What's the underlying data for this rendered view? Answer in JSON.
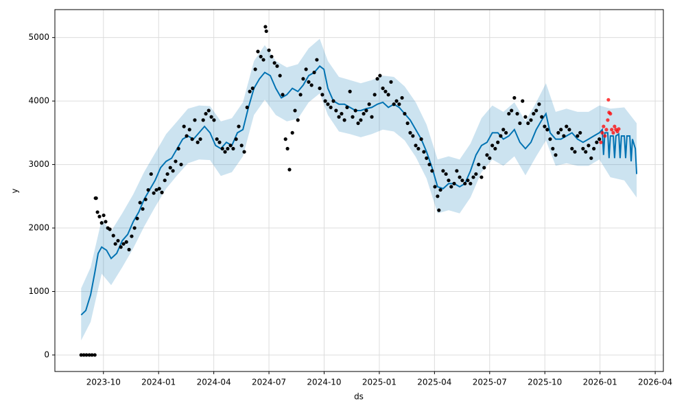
{
  "chart_data": {
    "type": "forecast",
    "x_label": "ds",
    "y_label": "y",
    "xlim": [
      2023.53,
      2026.287
    ],
    "ylim": [
      -260,
      5440
    ],
    "grid": true,
    "xticks": [
      {
        "value": 2023.75,
        "label": "2023-10"
      },
      {
        "value": 2024.0,
        "label": "2024-01"
      },
      {
        "value": 2024.25,
        "label": "2024-04"
      },
      {
        "value": 2024.5,
        "label": "2024-07"
      },
      {
        "value": 2024.75,
        "label": "2024-10"
      },
      {
        "value": 2025.0,
        "label": "2025-01"
      },
      {
        "value": 2025.25,
        "label": "2025-04"
      },
      {
        "value": 2025.5,
        "label": "2025-07"
      },
      {
        "value": 2025.75,
        "label": "2025-10"
      },
      {
        "value": 2026.0,
        "label": "2026-01"
      },
      {
        "value": 2026.25,
        "label": "2026-04"
      }
    ],
    "yticks": [
      0,
      1000,
      2000,
      3000,
      4000,
      5000
    ],
    "band": {
      "color": "#0072b2",
      "x": [
        2023.649,
        2023.692,
        2023.742,
        2023.785,
        2023.835,
        2023.885,
        2023.934,
        2023.984,
        2024.034,
        2024.084,
        2024.133,
        2024.183,
        2024.233,
        2024.282,
        2024.332,
        2024.382,
        2024.432,
        2024.481,
        2024.531,
        2024.581,
        2024.631,
        2024.68,
        2024.73,
        2024.767,
        2024.817,
        2024.867,
        2024.916,
        2024.966,
        2025.016,
        2025.066,
        2025.115,
        2025.165,
        2025.214,
        2025.264,
        2025.314,
        2025.364,
        2025.413,
        2025.463,
        2025.512,
        2025.562,
        2025.612,
        2025.662,
        2025.711,
        2025.755,
        2025.799,
        2025.848,
        2025.898,
        2025.948,
        2025.997,
        2026.047,
        2026.11,
        2026.166
      ],
      "lower": [
        230,
        520,
        1280,
        1100,
        1380,
        1680,
        2020,
        2330,
        2620,
        2830,
        3020,
        3080,
        3070,
        2820,
        2880,
        3130,
        3780,
        4020,
        3780,
        3680,
        3720,
        3980,
        4120,
        3780,
        3520,
        3480,
        3430,
        3480,
        3550,
        3520,
        3380,
        3120,
        2780,
        2230,
        2280,
        2230,
        2480,
        2880,
        3080,
        2980,
        3130,
        2830,
        3130,
        3380,
        2980,
        3020,
        2980,
        2980,
        3080,
        2800,
        2750,
        2480
      ],
      "upper": [
        1050,
        1380,
        2130,
        1950,
        2230,
        2530,
        2880,
        3180,
        3480,
        3680,
        3880,
        3930,
        3920,
        3680,
        3730,
        3980,
        4630,
        4880,
        4630,
        4530,
        4580,
        4830,
        4980,
        4630,
        4380,
        4330,
        4280,
        4330,
        4400,
        4380,
        4230,
        3980,
        3630,
        3080,
        3130,
        3080,
        3330,
        3730,
        3930,
        3830,
        3980,
        3680,
        3980,
        4280,
        3830,
        3880,
        3830,
        3830,
        3930,
        3880,
        3900,
        3650
      ]
    },
    "line": {
      "color": "#0072b2",
      "x": [
        2023.649,
        2023.67,
        2023.692,
        2023.711,
        2023.726,
        2023.742,
        2023.764,
        2023.785,
        2023.81,
        2023.835,
        2023.86,
        2023.885,
        2023.91,
        2023.934,
        2023.959,
        2023.984,
        2024.009,
        2024.034,
        2024.059,
        2024.084,
        2024.109,
        2024.133,
        2024.158,
        2024.183,
        2024.208,
        2024.233,
        2024.258,
        2024.282,
        2024.307,
        2024.332,
        2024.357,
        2024.382,
        2024.407,
        2024.432,
        2024.457,
        2024.481,
        2024.506,
        2024.531,
        2024.556,
        2024.581,
        2024.606,
        2024.631,
        2024.655,
        2024.68,
        2024.705,
        2024.73,
        2024.749,
        2024.767,
        2024.792,
        2024.817,
        2024.842,
        2024.867,
        2024.892,
        2024.916,
        2024.941,
        2024.966,
        2024.991,
        2025.016,
        2025.041,
        2025.066,
        2025.09,
        2025.115,
        2025.14,
        2025.165,
        2025.19,
        2025.214,
        2025.239,
        2025.264,
        2025.289,
        2025.314,
        2025.339,
        2025.364,
        2025.388,
        2025.413,
        2025.438,
        2025.463,
        2025.488,
        2025.512,
        2025.537,
        2025.562,
        2025.587,
        2025.612,
        2025.637,
        2025.662,
        2025.687,
        2025.711,
        2025.736,
        2025.755,
        2025.774,
        2025.799,
        2025.823,
        2025.848,
        2025.873,
        2025.898,
        2025.923,
        2025.948,
        2025.972,
        2025.997,
        2026.01,
        2026.016,
        2026.022,
        2026.035,
        2026.041,
        2026.047,
        2026.06,
        2026.066,
        2026.072,
        2026.085,
        2026.091,
        2026.097,
        2026.11,
        2026.116,
        2026.122,
        2026.135,
        2026.141,
        2026.147,
        2026.16,
        2026.166
      ],
      "values": [
        630,
        700,
        950,
        1300,
        1600,
        1700,
        1650,
        1520,
        1600,
        1800,
        1900,
        2100,
        2250,
        2450,
        2600,
        2750,
        2950,
        3050,
        3100,
        3250,
        3400,
        3450,
        3400,
        3500,
        3600,
        3500,
        3300,
        3250,
        3350,
        3300,
        3500,
        3550,
        3900,
        4200,
        4350,
        4450,
        4400,
        4200,
        4050,
        4100,
        4200,
        4150,
        4250,
        4400,
        4450,
        4550,
        4500,
        4200,
        4000,
        3950,
        3950,
        3900,
        3850,
        3850,
        3880,
        3900,
        3950,
        3980,
        3900,
        3950,
        3900,
        3800,
        3700,
        3550,
        3400,
        3200,
        2950,
        2650,
        2620,
        2700,
        2700,
        2650,
        2700,
        2900,
        3150,
        3300,
        3350,
        3500,
        3500,
        3400,
        3450,
        3550,
        3350,
        3250,
        3350,
        3550,
        3700,
        3800,
        3500,
        3400,
        3400,
        3450,
        3500,
        3400,
        3350,
        3400,
        3450,
        3500,
        3550,
        3150,
        3500,
        3500,
        3100,
        3450,
        3450,
        3100,
        3450,
        3480,
        3100,
        3450,
        3450,
        3100,
        3450,
        3450,
        3050,
        3400,
        3250,
        2850
      ]
    },
    "observed": {
      "color": "#000000",
      "x": [
        2023.649,
        2023.661,
        2023.673,
        2023.686,
        2023.698,
        2023.711,
        2023.714,
        2023.717,
        2023.723,
        2023.732,
        2023.742,
        2023.751,
        2023.76,
        2023.77,
        2023.779,
        2023.795,
        2023.804,
        2023.816,
        2023.829,
        2023.841,
        2023.854,
        2023.866,
        2023.878,
        2023.891,
        2023.903,
        2023.916,
        2023.928,
        2023.941,
        2023.953,
        2023.966,
        2023.978,
        2023.99,
        2024.003,
        2024.015,
        2024.028,
        2024.04,
        2024.053,
        2024.065,
        2024.077,
        2024.09,
        2024.102,
        2024.115,
        2024.127,
        2024.14,
        2024.152,
        2024.164,
        2024.177,
        2024.189,
        2024.202,
        2024.214,
        2024.227,
        2024.239,
        2024.251,
        2024.264,
        2024.276,
        2024.289,
        2024.301,
        2024.313,
        2024.326,
        2024.338,
        2024.351,
        2024.363,
        2024.376,
        2024.388,
        2024.401,
        2024.413,
        2024.426,
        2024.438,
        2024.45,
        2024.463,
        2024.475,
        2024.484,
        2024.488,
        2024.5,
        2024.512,
        2024.525,
        2024.537,
        2024.55,
        2024.562,
        2024.575,
        2024.584,
        2024.593,
        2024.606,
        2024.618,
        2024.631,
        2024.643,
        2024.655,
        2024.668,
        2024.68,
        2024.693,
        2024.705,
        2024.717,
        2024.73,
        2024.742,
        2024.755,
        2024.767,
        2024.78,
        2024.792,
        2024.804,
        2024.817,
        2024.829,
        2024.842,
        2024.854,
        2024.867,
        2024.879,
        2024.892,
        2024.904,
        2024.916,
        2024.929,
        2024.941,
        2024.954,
        2024.966,
        2024.979,
        2024.991,
        2025.003,
        2025.016,
        2025.028,
        2025.041,
        2025.053,
        2025.066,
        2025.078,
        2025.09,
        2025.103,
        2025.115,
        2025.128,
        2025.14,
        2025.152,
        2025.165,
        2025.177,
        2025.19,
        2025.202,
        2025.214,
        2025.227,
        2025.239,
        2025.252,
        2025.264,
        2025.27,
        2025.277,
        2025.289,
        2025.302,
        2025.314,
        2025.326,
        2025.339,
        2025.351,
        2025.364,
        2025.376,
        2025.388,
        2025.401,
        2025.413,
        2025.426,
        2025.438,
        2025.45,
        2025.463,
        2025.475,
        2025.488,
        2025.5,
        2025.512,
        2025.525,
        2025.537,
        2025.55,
        2025.562,
        2025.574,
        2025.587,
        2025.599,
        2025.612,
        2025.625,
        2025.637,
        2025.649,
        2025.662,
        2025.674,
        2025.687,
        2025.699,
        2025.711,
        2025.724,
        2025.736,
        2025.749,
        2025.761,
        2025.774,
        2025.786,
        2025.799,
        2025.811,
        2025.823,
        2025.836,
        2025.848,
        2025.861,
        2025.873,
        2025.886,
        2025.898,
        2025.91,
        2025.923,
        2025.935,
        2025.948,
        2025.96,
        2025.972,
        2025.985,
        2025.997
      ],
      "values": [
        0,
        0,
        0,
        0,
        0,
        0,
        2470,
        2470,
        2250,
        2180,
        2080,
        2200,
        2100,
        2000,
        1980,
        1880,
        1750,
        1800,
        1700,
        1750,
        1780,
        1660,
        1870,
        2000,
        2150,
        2400,
        2300,
        2450,
        2600,
        2850,
        2550,
        2600,
        2620,
        2560,
        2750,
        2850,
        2950,
        2900,
        3050,
        3250,
        3000,
        3600,
        3450,
        3550,
        3400,
        3700,
        3350,
        3400,
        3700,
        3800,
        3850,
        3750,
        3700,
        3400,
        3350,
        3250,
        3200,
        3250,
        3300,
        3250,
        3400,
        3600,
        3300,
        3200,
        3900,
        4150,
        4200,
        4500,
        4780,
        4700,
        4650,
        5170,
        5100,
        4800,
        4700,
        4600,
        4550,
        4400,
        4100,
        3400,
        3250,
        2920,
        3500,
        3850,
        3700,
        4100,
        4350,
        4500,
        4300,
        4250,
        4450,
        4650,
        4200,
        4100,
        4000,
        3950,
        3900,
        4000,
        3850,
        3750,
        3800,
        3700,
        3900,
        4150,
        3750,
        3850,
        3650,
        3700,
        3800,
        3850,
        3950,
        3750,
        4100,
        4350,
        4400,
        4200,
        4150,
        4100,
        4300,
        3950,
        4000,
        3950,
        4050,
        3800,
        3650,
        3500,
        3450,
        3300,
        3250,
        3400,
        3200,
        3100,
        3000,
        2900,
        2650,
        2500,
        2280,
        2600,
        2900,
        2850,
        2750,
        2650,
        2700,
        2900,
        2800,
        2750,
        2700,
        2750,
        2700,
        2800,
        2850,
        3000,
        2800,
        2950,
        3150,
        3100,
        3300,
        3250,
        3350,
        3450,
        3550,
        3500,
        3800,
        3850,
        4050,
        3800,
        3650,
        4000,
        3750,
        3650,
        3700,
        3800,
        3850,
        3950,
        3750,
        3600,
        3550,
        3400,
        3250,
        3150,
        3500,
        3550,
        3450,
        3600,
        3550,
        3250,
        3200,
        3450,
        3500,
        3250,
        3200,
        3300,
        3100,
        3250,
        3350,
        3400
      ]
    },
    "recent": {
      "color": "#ff0000",
      "x": [
        2026.004,
        2026.01,
        2026.016,
        2026.022,
        2026.029,
        2026.035,
        2026.038,
        2026.041,
        2026.047,
        2026.053,
        2026.06,
        2026.066,
        2026.072,
        2026.079,
        2026.085
      ],
      "values": [
        3350,
        3500,
        3600,
        3450,
        3550,
        3700,
        4020,
        3820,
        3800,
        3550,
        3500,
        3600,
        3550,
        3520,
        3560
      ]
    }
  }
}
